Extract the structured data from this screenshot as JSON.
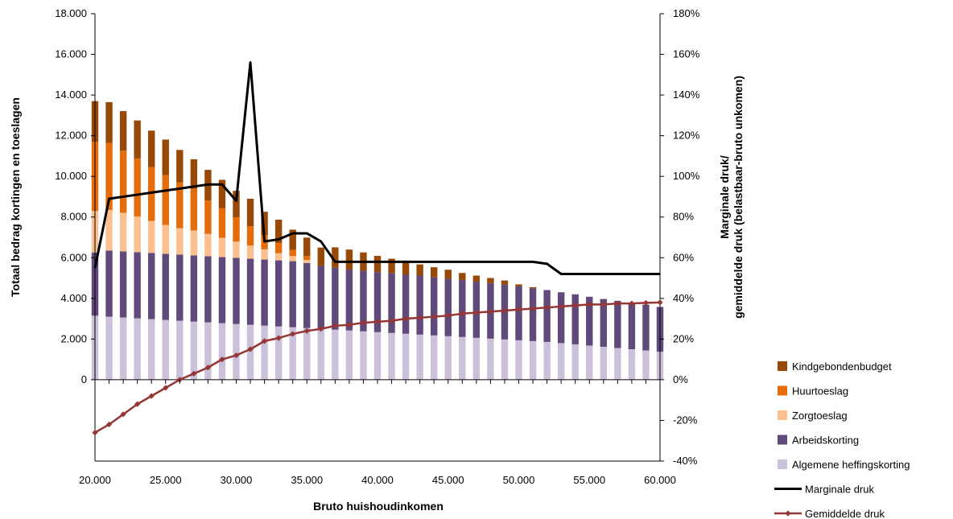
{
  "chart_data": {
    "type": "bar",
    "title": "",
    "xlabel": "Bruto huishoudinkomen",
    "ylabel": "Totaal bedrag kortingen en toeslagen",
    "y2label": [
      "Marginale druk/",
      "gemiddelde druk (belastbaar-bruto unkomen)"
    ],
    "stacked": true,
    "ylim": [
      -4000,
      18000
    ],
    "y2lim": [
      -0.4,
      1.8
    ],
    "xlim": [
      20000,
      60000
    ],
    "legend_position": "right",
    "x": [
      20000,
      21000,
      22000,
      23000,
      24000,
      25000,
      26000,
      27000,
      28000,
      29000,
      30000,
      31000,
      32000,
      33000,
      34000,
      35000,
      36000,
      37000,
      38000,
      39000,
      40000,
      41000,
      42000,
      43000,
      44000,
      45000,
      46000,
      47000,
      48000,
      49000,
      50000,
      51000,
      52000,
      53000,
      54000,
      55000,
      56000,
      57000,
      58000,
      59000,
      60000
    ],
    "x_tick_labels": [
      "20.000",
      "25.000",
      "30.000",
      "35.000",
      "40.000",
      "45.000",
      "50.000",
      "55.000",
      "60.000"
    ],
    "x_tick_values": [
      20000,
      25000,
      30000,
      35000,
      40000,
      45000,
      50000,
      55000,
      60000
    ],
    "y_tick_labels": [
      "0",
      "2.000",
      "4.000",
      "6.000",
      "8.000",
      "10.000",
      "12.000",
      "14.000",
      "16.000",
      "18.000"
    ],
    "y_tick_values": [
      0,
      2000,
      4000,
      6000,
      8000,
      10000,
      12000,
      14000,
      16000,
      18000
    ],
    "y2_tick_labels": [
      "-40%",
      "-20%",
      "0%",
      "20%",
      "40%",
      "60%",
      "80%",
      "100%",
      "120%",
      "140%",
      "160%",
      "180%"
    ],
    "y2_tick_values": [
      -0.4,
      -0.2,
      0,
      0.2,
      0.4,
      0.6,
      0.8,
      1.0,
      1.2,
      1.4,
      1.6,
      1.8
    ],
    "series": [
      {
        "name": "Algemene heffingskorting",
        "color": "#ccc1da",
        "kind": "bar",
        "values": [
          3150,
          3100,
          3060,
          3020,
          2980,
          2940,
          2900,
          2860,
          2820,
          2780,
          2740,
          2700,
          2660,
          2620,
          2580,
          2540,
          2500,
          2460,
          2420,
          2380,
          2340,
          2300,
          2260,
          2220,
          2180,
          2140,
          2100,
          2060,
          2020,
          1980,
          1940,
          1900,
          1860,
          1800,
          1740,
          1680,
          1620,
          1560,
          1500,
          1440,
          1380
        ]
      },
      {
        "name": "Arbeidskorting",
        "color": "#604a7b",
        "kind": "bar",
        "values": [
          3100,
          3250,
          3250,
          3250,
          3250,
          3250,
          3250,
          3250,
          3250,
          3250,
          3250,
          3250,
          3250,
          3250,
          3250,
          3200,
          3100,
          3050,
          3000,
          2980,
          2950,
          2950,
          2900,
          2900,
          2850,
          2820,
          2800,
          2760,
          2730,
          2700,
          2650,
          2600,
          2550,
          2500,
          2460,
          2400,
          2350,
          2320,
          2280,
          2250,
          2200
        ]
      },
      {
        "name": "Zorgtoeslag",
        "color": "#fac090",
        "kind": "bar",
        "values": [
          2050,
          2000,
          1900,
          1760,
          1580,
          1420,
          1300,
          1230,
          1100,
          950,
          800,
          650,
          500,
          350,
          250,
          150,
          0,
          0,
          0,
          0,
          0,
          0,
          0,
          0,
          0,
          0,
          0,
          0,
          0,
          0,
          0,
          0,
          0,
          0,
          0,
          0,
          0,
          0,
          0,
          0,
          0
        ]
      },
      {
        "name": "Huurtoeslag",
        "color": "#e46c0a",
        "kind": "bar",
        "values": [
          3400,
          3300,
          3050,
          2850,
          2650,
          2450,
          2250,
          2050,
          1650,
          1450,
          1200,
          950,
          700,
          500,
          300,
          200,
          0,
          0,
          0,
          0,
          0,
          0,
          0,
          0,
          0,
          0,
          0,
          0,
          0,
          0,
          0,
          0,
          0,
          0,
          0,
          0,
          0,
          0,
          0,
          0,
          0
        ]
      },
      {
        "name": "Kindgebondenbudget",
        "color": "#984807",
        "kind": "bar",
        "values": [
          2000,
          2000,
          1950,
          1870,
          1790,
          1750,
          1600,
          1450,
          1500,
          1400,
          1300,
          1350,
          1150,
          1150,
          1000,
          900,
          900,
          1000,
          980,
          900,
          800,
          700,
          650,
          550,
          500,
          450,
          350,
          300,
          250,
          200,
          100,
          50,
          0,
          0,
          0,
          0,
          0,
          0,
          0,
          0,
          0
        ]
      },
      {
        "name": "Marginale druk",
        "color": "#000000",
        "kind": "line",
        "axis": "right",
        "values": [
          0.55,
          0.89,
          0.9,
          0.91,
          0.92,
          0.93,
          0.94,
          0.95,
          0.96,
          0.96,
          0.88,
          1.56,
          0.68,
          0.69,
          0.72,
          0.72,
          0.68,
          0.58,
          0.58,
          0.58,
          0.58,
          0.58,
          0.58,
          0.58,
          0.58,
          0.58,
          0.58,
          0.58,
          0.58,
          0.58,
          0.58,
          0.58,
          0.57,
          0.52,
          0.52,
          0.52,
          0.52,
          0.52,
          0.52,
          0.52,
          0.52
        ]
      },
      {
        "name": "Gemiddelde druk",
        "color": "#953735",
        "kind": "line-markers",
        "axis": "right",
        "values": [
          -0.26,
          -0.22,
          -0.17,
          -0.12,
          -0.08,
          -0.04,
          0.0,
          0.03,
          0.06,
          0.1,
          0.12,
          0.15,
          0.19,
          0.205,
          0.225,
          0.24,
          0.25,
          0.265,
          0.27,
          0.28,
          0.285,
          0.29,
          0.3,
          0.305,
          0.31,
          0.315,
          0.325,
          0.33,
          0.335,
          0.34,
          0.345,
          0.35,
          0.355,
          0.36,
          0.365,
          0.37,
          0.37,
          0.375,
          0.375,
          0.378,
          0.38
        ]
      }
    ]
  }
}
